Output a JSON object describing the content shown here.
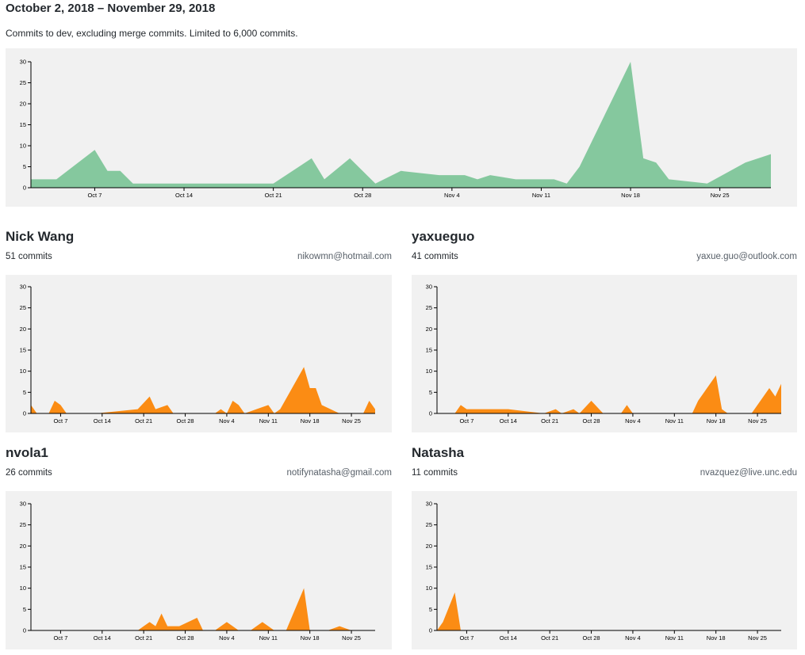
{
  "header": {
    "date_range": "October 2, 2018 – November 29, 2018",
    "description": "Commits to dev, excluding merge commits. Limited to 6,000 commits."
  },
  "colors": {
    "total_area": "#85c89e",
    "contributor_area": "#fb8c14",
    "chart_bg": "#f1f1f1"
  },
  "axis": {
    "x_start": "2018-10-02",
    "x_end": "2018-11-29",
    "x_ticks": [
      {
        "date": "2018-10-07",
        "label": "Oct 7"
      },
      {
        "date": "2018-10-14",
        "label": "Oct 14"
      },
      {
        "date": "2018-10-21",
        "label": "Oct 21"
      },
      {
        "date": "2018-10-28",
        "label": "Oct 28"
      },
      {
        "date": "2018-11-04",
        "label": "Nov 4"
      },
      {
        "date": "2018-11-11",
        "label": "Nov 11"
      },
      {
        "date": "2018-11-18",
        "label": "Nov 18"
      },
      {
        "date": "2018-11-25",
        "label": "Nov 25"
      }
    ],
    "y_ticks": [
      0,
      5,
      10,
      15,
      20,
      25,
      30
    ],
    "ylim": [
      0,
      30
    ]
  },
  "contributors": [
    {
      "name": "Nick Wang",
      "commits_label": "51 commits",
      "email": "nikowmn@hotmail.com"
    },
    {
      "name": "yaxueguo",
      "commits_label": "41 commits",
      "email": "yaxue.guo@outlook.com"
    },
    {
      "name": "nvola1",
      "commits_label": "26 commits",
      "email": "notifynatasha@gmail.com"
    },
    {
      "name": "Natasha",
      "commits_label": "11 commits",
      "email": "nvazquez@live.unc.edu"
    }
  ],
  "chart_data": [
    {
      "type": "area",
      "ylim": [
        0,
        30
      ],
      "points": [
        [
          "2018-10-02",
          2
        ],
        [
          "2018-10-04",
          2
        ],
        [
          "2018-10-07",
          9
        ],
        [
          "2018-10-08",
          4
        ],
        [
          "2018-10-09",
          4
        ],
        [
          "2018-10-10",
          1
        ],
        [
          "2018-10-21",
          1
        ],
        [
          "2018-10-24",
          7
        ],
        [
          "2018-10-25",
          2
        ],
        [
          "2018-10-27",
          7
        ],
        [
          "2018-10-29",
          1
        ],
        [
          "2018-10-31",
          4
        ],
        [
          "2018-11-03",
          3
        ],
        [
          "2018-11-05",
          3
        ],
        [
          "2018-11-06",
          2
        ],
        [
          "2018-11-07",
          3
        ],
        [
          "2018-11-09",
          2
        ],
        [
          "2018-11-12",
          2
        ],
        [
          "2018-11-13",
          1
        ],
        [
          "2018-11-14",
          5
        ],
        [
          "2018-11-18",
          30
        ],
        [
          "2018-11-19",
          7
        ],
        [
          "2018-11-20",
          6
        ],
        [
          "2018-11-21",
          2
        ],
        [
          "2018-11-24",
          1
        ],
        [
          "2018-11-27",
          6
        ],
        [
          "2018-11-29",
          8
        ]
      ]
    },
    {
      "type": "area",
      "ylim": [
        0,
        30
      ],
      "points": [
        [
          "2018-10-02",
          2
        ],
        [
          "2018-10-03",
          0
        ],
        [
          "2018-10-05",
          0
        ],
        [
          "2018-10-06",
          3
        ],
        [
          "2018-10-07",
          2
        ],
        [
          "2018-10-08",
          0
        ],
        [
          "2018-10-13",
          0
        ],
        [
          "2018-10-20",
          1
        ],
        [
          "2018-10-22",
          4
        ],
        [
          "2018-10-23",
          1
        ],
        [
          "2018-10-25",
          2
        ],
        [
          "2018-10-26",
          0
        ],
        [
          "2018-11-02",
          0
        ],
        [
          "2018-11-03",
          1
        ],
        [
          "2018-11-04",
          0
        ],
        [
          "2018-11-05",
          3
        ],
        [
          "2018-11-06",
          2
        ],
        [
          "2018-11-07",
          0
        ],
        [
          "2018-11-09",
          1
        ],
        [
          "2018-11-11",
          2
        ],
        [
          "2018-11-12",
          0
        ],
        [
          "2018-11-13",
          1
        ],
        [
          "2018-11-17",
          11
        ],
        [
          "2018-11-18",
          6
        ],
        [
          "2018-11-19",
          6
        ],
        [
          "2018-11-20",
          2
        ],
        [
          "2018-11-23",
          0
        ],
        [
          "2018-11-27",
          0
        ],
        [
          "2018-11-28",
          3
        ],
        [
          "2018-11-29",
          1
        ]
      ]
    },
    {
      "type": "area",
      "ylim": [
        0,
        30
      ],
      "points": [
        [
          "2018-10-02",
          0
        ],
        [
          "2018-10-05",
          0
        ],
        [
          "2018-10-06",
          2
        ],
        [
          "2018-10-07",
          1
        ],
        [
          "2018-10-14",
          1
        ],
        [
          "2018-10-20",
          0
        ],
        [
          "2018-10-22",
          1
        ],
        [
          "2018-10-23",
          0
        ],
        [
          "2018-10-25",
          1
        ],
        [
          "2018-10-26",
          0
        ],
        [
          "2018-10-28",
          3
        ],
        [
          "2018-10-30",
          0
        ],
        [
          "2018-11-02",
          0
        ],
        [
          "2018-11-03",
          2
        ],
        [
          "2018-11-04",
          0
        ],
        [
          "2018-11-14",
          0
        ],
        [
          "2018-11-15",
          3
        ],
        [
          "2018-11-18",
          9
        ],
        [
          "2018-11-19",
          1
        ],
        [
          "2018-11-20",
          0
        ],
        [
          "2018-11-24",
          0
        ],
        [
          "2018-11-27",
          6
        ],
        [
          "2018-11-28",
          4
        ],
        [
          "2018-11-29",
          7
        ]
      ]
    },
    {
      "type": "area",
      "ylim": [
        0,
        30
      ],
      "points": [
        [
          "2018-10-02",
          0
        ],
        [
          "2018-10-20",
          0
        ],
        [
          "2018-10-21",
          1
        ],
        [
          "2018-10-22",
          2
        ],
        [
          "2018-10-23",
          1
        ],
        [
          "2018-10-24",
          4
        ],
        [
          "2018-10-25",
          1
        ],
        [
          "2018-10-27",
          1
        ],
        [
          "2018-10-30",
          3
        ],
        [
          "2018-10-31",
          0
        ],
        [
          "2018-11-02",
          0
        ],
        [
          "2018-11-04",
          2
        ],
        [
          "2018-11-05",
          1
        ],
        [
          "2018-11-06",
          0
        ],
        [
          "2018-11-08",
          0
        ],
        [
          "2018-11-10",
          2
        ],
        [
          "2018-11-11",
          1
        ],
        [
          "2018-11-12",
          0
        ],
        [
          "2018-11-14",
          0
        ],
        [
          "2018-11-17",
          10
        ],
        [
          "2018-11-18",
          0
        ],
        [
          "2018-11-21",
          0
        ],
        [
          "2018-11-23",
          1
        ],
        [
          "2018-11-25",
          0
        ],
        [
          "2018-11-29",
          0
        ]
      ]
    },
    {
      "type": "area",
      "ylim": [
        0,
        30
      ],
      "points": [
        [
          "2018-10-02",
          0
        ],
        [
          "2018-10-03",
          2
        ],
        [
          "2018-10-05",
          9
        ],
        [
          "2018-10-06",
          0
        ],
        [
          "2018-11-29",
          0
        ]
      ]
    }
  ]
}
